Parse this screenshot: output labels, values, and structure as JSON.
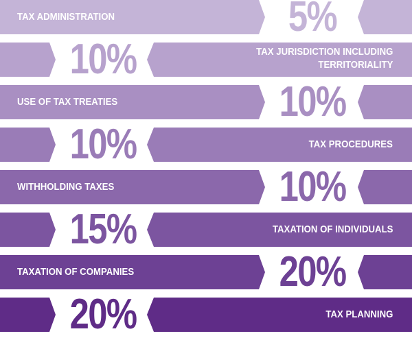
{
  "chart_data": {
    "type": "bar",
    "title": "",
    "categories": [
      "TAX ADMINISTRATION",
      "TAX JURISDICTION INCLUDING TERRITORIALITY",
      "USE OF TAX TREATIES",
      "TAX PROCEDURES",
      "WITHHOLDING TAXES",
      "TAXATION OF INDIVIDUALS",
      "TAXATION OF COMPANIES",
      "TAX PLANNING"
    ],
    "values": [
      5,
      10,
      10,
      10,
      10,
      15,
      20,
      20
    ],
    "unit": "%"
  },
  "rows": [
    {
      "label": "TAX ADMINISTRATION",
      "label2": "",
      "pct": "5%",
      "color": "#c4b4d7"
    },
    {
      "label": "TAX JURISDICTION INCLUDING",
      "label2": "TERRITORIALITY",
      "pct": "10%",
      "color": "#b7a2cd"
    },
    {
      "label": "USE OF TAX TREATIES",
      "label2": "",
      "pct": "10%",
      "color": "#a98fc2"
    },
    {
      "label": "TAX PROCEDURES",
      "label2": "",
      "pct": "10%",
      "color": "#9a7cb7"
    },
    {
      "label": "WITHHOLDING TAXES",
      "label2": "",
      "pct": "10%",
      "color": "#8b68ab"
    },
    {
      "label": "TAXATION OF INDIVIDUALS",
      "label2": "",
      "pct": "15%",
      "color": "#7c55a0"
    },
    {
      "label": "TAXATION OF COMPANIES",
      "label2": "",
      "pct": "20%",
      "color": "#6d4194"
    },
    {
      "label": "TAX PLANNING",
      "label2": "",
      "pct": "20%",
      "color": "#5f2c87"
    }
  ]
}
